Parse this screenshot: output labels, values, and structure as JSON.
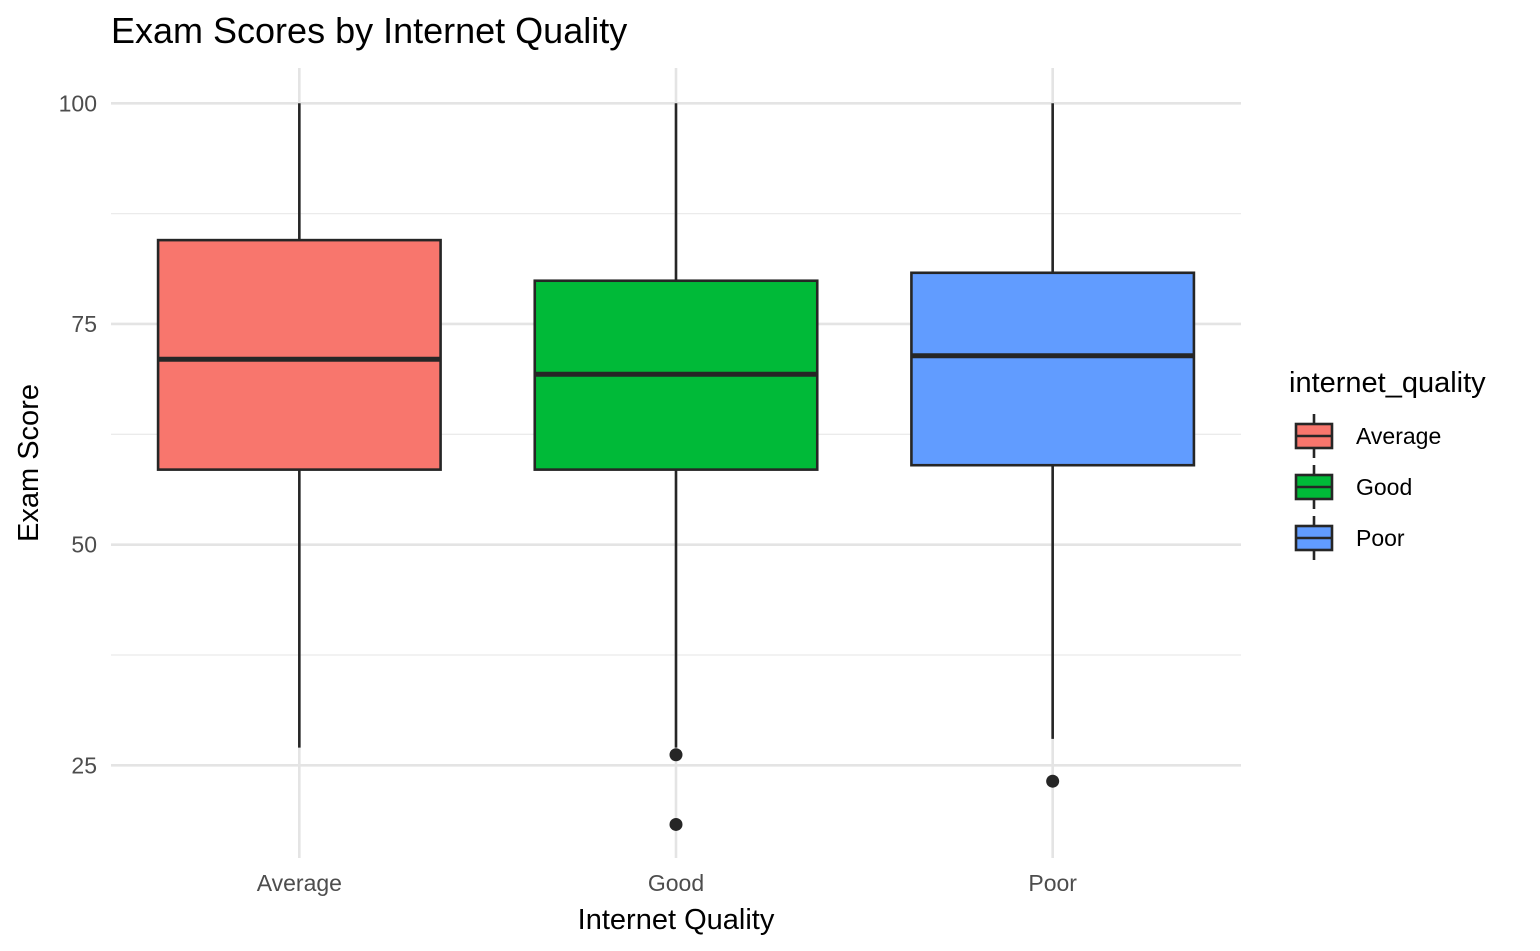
{
  "chart_data": {
    "type": "boxplot",
    "title": "Exam Scores by Internet Quality",
    "xlabel": "Internet Quality",
    "ylabel": "Exam Score",
    "ylim": [
      14.5,
      104
    ],
    "yticks": [
      25,
      50,
      75,
      100
    ],
    "grid": true,
    "categories": [
      "Average",
      "Good",
      "Poor"
    ],
    "boxes": [
      {
        "category": "Average",
        "min": 27.0,
        "q1": 58.5,
        "median": 71.0,
        "q3": 84.5,
        "max": 100,
        "outliers": [],
        "color": "#F8766D"
      },
      {
        "category": "Good",
        "min": 27.0,
        "q1": 58.5,
        "median": 69.3,
        "q3": 79.9,
        "max": 100,
        "outliers": [
          26.2,
          18.3
        ],
        "color": "#00BA38"
      },
      {
        "category": "Poor",
        "min": 28.0,
        "q1": 59.0,
        "median": 71.4,
        "q3": 80.8,
        "max": 100,
        "outliers": [
          23.2
        ],
        "color": "#619CFF"
      }
    ],
    "legend": {
      "title": "internet_quality",
      "placement": "right",
      "entries": [
        "Average",
        "Good",
        "Poor"
      ]
    }
  }
}
